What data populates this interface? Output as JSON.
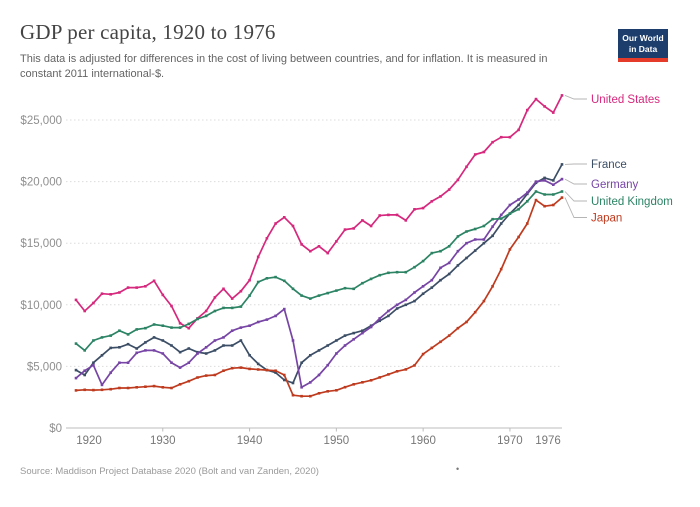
{
  "header": {
    "title": "GDP per capita, 1920 to 1976",
    "subtitle": "This data is adjusted for differences in the cost of living between countries, and for inflation. It is measured in constant 2011 international-$.",
    "logo": {
      "line1": "Our World",
      "line2": "in Data",
      "bg": "#1d3d6d",
      "accent": "#e43b2a"
    }
  },
  "footer": {
    "source": "Source: Maddison Project Database 2020 (Bolt and van Zanden, 2020)",
    "separator": "•"
  },
  "chart_data": {
    "type": "line",
    "title": "GDP per capita, 1920 to 1976",
    "xlabel": "",
    "ylabel": "",
    "xlim": [
      1920,
      1976
    ],
    "ylim": [
      0,
      27500
    ],
    "x_start": 1920,
    "x_ticks": [
      1920,
      1930,
      1940,
      1950,
      1960,
      1970,
      1976
    ],
    "x_tick_labels": [
      "1920",
      "1930",
      "1940",
      "1950",
      "1960",
      "1970",
      "1976"
    ],
    "y_ticks": [
      0,
      5000,
      10000,
      15000,
      20000,
      25000
    ],
    "y_tick_labels": [
      "$0",
      "$5,000",
      "$10,000",
      "$15,000",
      "$20,000",
      "$25,000"
    ],
    "grid": "horizontal-dotted",
    "legend_position": "right",
    "axis_color": "#bcbcbc",
    "grid_color": "#dcdcdc",
    "tick_label_color": "#8f8f8f",
    "series": [
      {
        "name": "United States",
        "color": "#d6287d",
        "values": [
          10400,
          9500,
          10150,
          10900,
          10850,
          11000,
          11400,
          11400,
          11500,
          11950,
          10800,
          9900,
          8500,
          8100,
          8900,
          9500,
          10600,
          11300,
          10500,
          11100,
          12000,
          13900,
          15400,
          16600,
          17100,
          16400,
          14900,
          14350,
          14750,
          14200,
          15150,
          16100,
          16200,
          16850,
          16400,
          17250,
          17300,
          17300,
          16850,
          17750,
          17850,
          18400,
          18800,
          19350,
          20150,
          21200,
          22200,
          22400,
          23200,
          23600,
          23600,
          24200,
          25800,
          26700,
          26100,
          25600,
          27000
        ]
      },
      {
        "name": "France",
        "color": "#3c4e66",
        "values": [
          4700,
          4300,
          5300,
          5900,
          6500,
          6550,
          6800,
          6450,
          6950,
          7350,
          7100,
          6700,
          6150,
          6450,
          6150,
          6050,
          6300,
          6700,
          6700,
          7100,
          5900,
          5200,
          4700,
          4500,
          3900,
          3650,
          5300,
          5900,
          6300,
          6700,
          7100,
          7500,
          7700,
          7900,
          8300,
          8700,
          9100,
          9700,
          10000,
          10300,
          10900,
          11400,
          12000,
          12500,
          13200,
          13800,
          14400,
          15000,
          15600,
          16600,
          17400,
          18100,
          19000,
          19900,
          20300,
          20100,
          21400
        ]
      },
      {
        "name": "Germany",
        "color": "#7745a5",
        "values": [
          4050,
          4650,
          5100,
          3500,
          4500,
          5300,
          5300,
          6100,
          6300,
          6300,
          6050,
          5300,
          4900,
          5300,
          6050,
          6550,
          7100,
          7350,
          7900,
          8150,
          8300,
          8600,
          8800,
          9100,
          9650,
          7100,
          3300,
          3700,
          4300,
          5100,
          6050,
          6700,
          7200,
          7700,
          8200,
          8900,
          9500,
          10000,
          10400,
          11000,
          11500,
          12000,
          13000,
          13400,
          14350,
          15000,
          15300,
          15300,
          16350,
          17300,
          18100,
          18550,
          19100,
          20000,
          20100,
          19750,
          20200
        ]
      },
      {
        "name": "United Kingdom",
        "color": "#2c8465",
        "values": [
          6850,
          6300,
          7100,
          7350,
          7500,
          7900,
          7600,
          8000,
          8100,
          8400,
          8300,
          8150,
          8150,
          8450,
          8850,
          9100,
          9500,
          9750,
          9750,
          9850,
          10750,
          11850,
          12150,
          12250,
          11950,
          11300,
          10750,
          10500,
          10750,
          10950,
          11150,
          11350,
          11300,
          11750,
          12100,
          12400,
          12600,
          12650,
          12650,
          13050,
          13550,
          14200,
          14350,
          14750,
          15550,
          15950,
          16150,
          16400,
          16950,
          17000,
          17400,
          17750,
          18400,
          19200,
          18950,
          18950,
          19200
        ]
      },
      {
        "name": "Japan",
        "color": "#bf3b1f",
        "values": [
          3050,
          3100,
          3080,
          3100,
          3150,
          3250,
          3250,
          3300,
          3350,
          3400,
          3300,
          3250,
          3550,
          3800,
          4100,
          4250,
          4300,
          4650,
          4850,
          4900,
          4800,
          4750,
          4700,
          4650,
          4300,
          2660,
          2580,
          2580,
          2820,
          2980,
          3060,
          3310,
          3550,
          3710,
          3870,
          4110,
          4350,
          4600,
          4760,
          5080,
          6000,
          6500,
          7000,
          7500,
          8100,
          8600,
          9400,
          10300,
          11500,
          12900,
          14500,
          15500,
          16600,
          18500,
          18000,
          18100,
          18700
        ]
      }
    ]
  }
}
